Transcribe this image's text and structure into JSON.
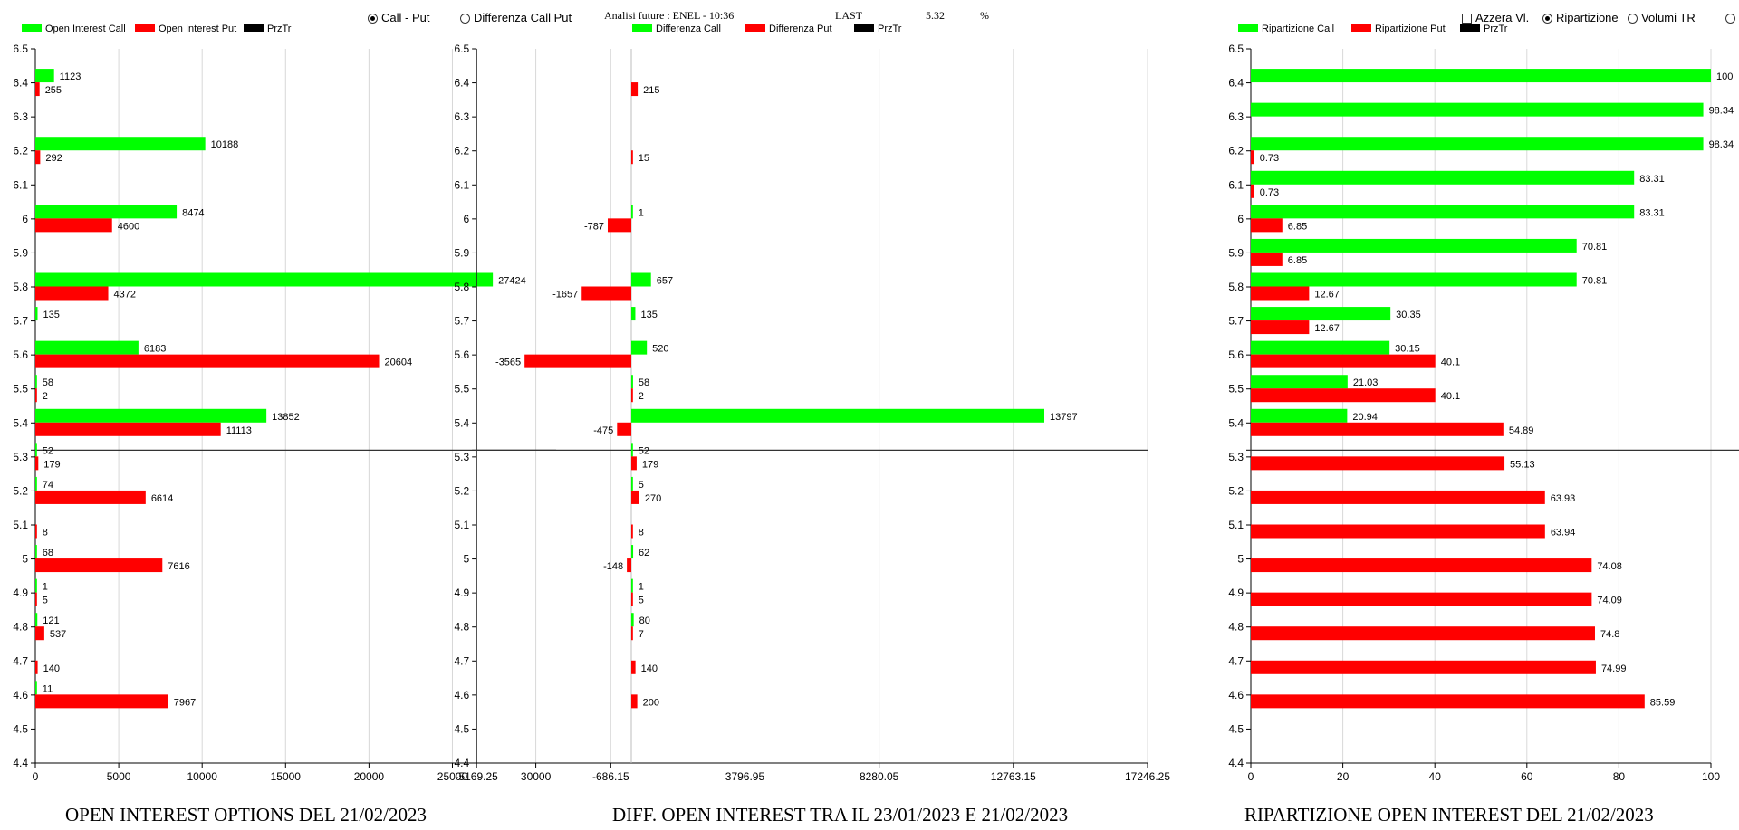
{
  "header": {
    "opt_call_put": "Call - Put",
    "opt_diff": "Differenza Call Put",
    "analysis": "Analisi future : ENEL - 10:36",
    "last_label": "LAST",
    "last_value": "5.32",
    "pct_label": "%",
    "opt_azzera": "Azzera Vl.",
    "opt_ripartizione": "Ripartizione",
    "opt_volumi": "Volumi TR",
    "selected_left": "Call - Put",
    "selected_right": "Ripartizione"
  },
  "colors": {
    "call": "#00ff00",
    "put": "#ff0000",
    "prztr": "#000000"
  },
  "chart_data": [
    {
      "type": "bar",
      "orientation": "horizontal",
      "title": "OPEN INTEREST OPTIONS DEL 21/02/2023",
      "legend": [
        "Open Interest Call",
        "Open Interest Put",
        "PrzTr"
      ],
      "legend_position": "top-left",
      "grid": true,
      "ylim": [
        4.4,
        6.5
      ],
      "yticks": [
        "6.5",
        "6.4",
        "6.3",
        "6.2",
        "6.1",
        "6",
        "5.9",
        "5.8",
        "5.7",
        "5.6",
        "5.5",
        "5.4",
        "5.3",
        "5.2",
        "5.1",
        "5",
        "4.9",
        "4.8",
        "4.7",
        "4.6",
        "4.5",
        "4.4"
      ],
      "xlim": [
        0,
        31000
      ],
      "xticks": [
        "0",
        "5000",
        "10000",
        "15000",
        "20000",
        "25000",
        "30000"
      ],
      "current_price": 5.32,
      "series": [
        {
          "name": "Open Interest Call",
          "strikes": [
            6.4,
            6.2,
            6.0,
            5.8,
            5.7,
            5.6,
            5.5,
            5.4,
            5.3,
            5.2,
            5.0,
            4.9,
            4.8,
            4.6
          ],
          "values": [
            1123,
            10188,
            8474,
            27424,
            135,
            6183,
            58,
            13852,
            52,
            74,
            68,
            1,
            121,
            11
          ],
          "labels": [
            "1123",
            "10188",
            "8474",
            "27424",
            "135",
            "6183",
            "58",
            "13852",
            "52",
            "74",
            "68",
            "1",
            "121",
            "11"
          ]
        },
        {
          "name": "Open Interest Put",
          "strikes": [
            6.4,
            6.2,
            6.0,
            5.8,
            5.6,
            5.5,
            5.4,
            5.3,
            5.2,
            5.1,
            5.0,
            4.9,
            4.8,
            4.7,
            4.6
          ],
          "values": [
            255,
            292,
            4600,
            4372,
            20604,
            2,
            11113,
            179,
            6614,
            8,
            7616,
            5,
            537,
            140,
            7967
          ],
          "labels": [
            "255",
            "292",
            "4600",
            "4372",
            "20604",
            "2",
            "11113",
            "179",
            "6614",
            "8",
            "7616",
            "5",
            "537",
            "140",
            "7967"
          ]
        }
      ]
    },
    {
      "type": "bar",
      "orientation": "horizontal",
      "title": "DIFF. OPEN INTEREST TRA IL 23/01/2023 E 21/02/2023",
      "legend": [
        "Differenza Call",
        "Differenza Put",
        "PrzTr"
      ],
      "legend_position": "top-left",
      "grid": true,
      "ylim": [
        4.4,
        6.5
      ],
      "yticks": [
        "6.5",
        "6.4",
        "6.3",
        "6.2",
        "6.1",
        "6",
        "5.9",
        "5.8",
        "5.7",
        "5.6",
        "5.5",
        "5.4",
        "5.3",
        "5.2",
        "5.1",
        "5",
        "4.9",
        "4.8",
        "4.7",
        "4.6",
        "4.5",
        "4.4"
      ],
      "xlim": [
        -5169.25,
        17246.25
      ],
      "xticks": [
        "-5169.25",
        "-686.15",
        "3796.95",
        "8280.05",
        "12763.15",
        "17246.25"
      ],
      "current_price": 5.32,
      "series": [
        {
          "name": "Differenza Call",
          "strikes": [
            6.0,
            5.8,
            5.7,
            5.6,
            5.5,
            5.4,
            5.3,
            5.2,
            5.0,
            4.9,
            4.8
          ],
          "values": [
            1,
            657,
            135,
            520,
            58,
            13797,
            52,
            5,
            62,
            1,
            80
          ],
          "labels": [
            "1",
            "657",
            "135",
            "520",
            "58",
            "13797",
            "52",
            "5",
            "62",
            "1",
            "80"
          ]
        },
        {
          "name": "Differenza Put",
          "strikes": [
            6.4,
            6.2,
            6.0,
            5.8,
            5.6,
            5.5,
            5.4,
            5.3,
            5.2,
            5.1,
            5.0,
            4.9,
            4.8,
            4.7,
            4.6
          ],
          "values": [
            215,
            15,
            -787,
            -1657,
            -3565,
            2,
            -475,
            179,
            270,
            8,
            -148,
            5,
            7,
            140,
            200
          ],
          "labels": [
            "215",
            "15",
            "-787",
            "-1657",
            "-3565",
            "2",
            "-475",
            "179",
            "270",
            "8",
            "-148",
            "5",
            "7",
            "140",
            "200"
          ]
        }
      ]
    },
    {
      "type": "bar",
      "orientation": "horizontal",
      "title": "RIPARTIZIONE OPEN INTEREST DEL 21/02/2023",
      "legend": [
        "Ripartizione Call",
        "Ripartizione Put",
        "PrzTr"
      ],
      "legend_position": "top-left",
      "grid": true,
      "ylim": [
        4.4,
        6.5
      ],
      "yticks": [
        "6.5",
        "6.4",
        "6.3",
        "6.2",
        "6.1",
        "6",
        "5.9",
        "5.8",
        "5.7",
        "5.6",
        "5.5",
        "5.4",
        "5.3",
        "5.2",
        "5.1",
        "5",
        "4.9",
        "4.8",
        "4.7",
        "4.6",
        "4.5",
        "4.4"
      ],
      "xlim": [
        0,
        100
      ],
      "xticks": [
        "0",
        "20",
        "40",
        "60",
        "80",
        "100"
      ],
      "current_price": 5.32,
      "series": [
        {
          "name": "Ripartizione Call",
          "strikes": [
            6.4,
            6.3,
            6.2,
            6.1,
            6.0,
            5.9,
            5.8,
            5.7,
            5.6,
            5.5,
            5.4
          ],
          "values": [
            100,
            98.34,
            98.34,
            83.31,
            83.31,
            70.81,
            70.81,
            30.35,
            30.15,
            21.03,
            20.94
          ],
          "labels": [
            "100",
            "98.34",
            "98.34",
            "83.31",
            "83.31",
            "70.81",
            "70.81",
            "30.35",
            "30.15",
            "21.03",
            "20.94"
          ]
        },
        {
          "name": "Ripartizione Put",
          "strikes": [
            6.2,
            6.1,
            6.0,
            5.9,
            5.8,
            5.7,
            5.6,
            5.5,
            5.4,
            5.3,
            5.2,
            5.1,
            5.0,
            4.9,
            4.8,
            4.7,
            4.6
          ],
          "values": [
            0.73,
            0.73,
            6.85,
            6.85,
            12.67,
            12.67,
            40.1,
            40.1,
            54.89,
            55.13,
            63.93,
            63.94,
            74.08,
            74.09,
            74.8,
            74.99,
            85.59
          ],
          "labels": [
            "0.73",
            "0.73",
            "6.85",
            "6.85",
            "12.67",
            "12.67",
            "40.1",
            "40.1",
            "54.89",
            "55.13",
            "63.93",
            "63.94",
            "74.08",
            "74.09",
            "74.8",
            "74.99",
            "85.59"
          ]
        }
      ]
    }
  ]
}
